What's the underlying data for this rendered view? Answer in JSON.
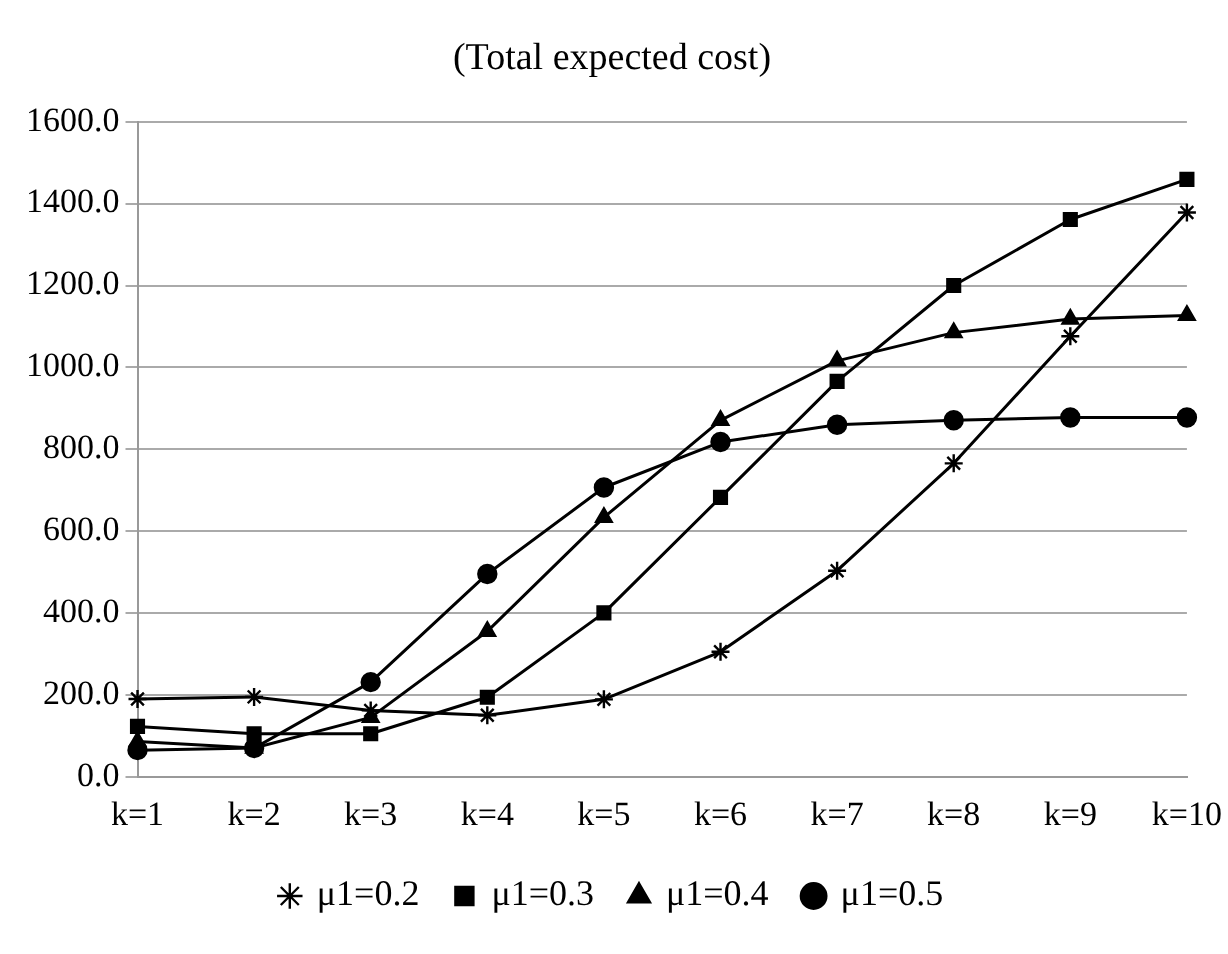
{
  "chart_data": {
    "type": "line",
    "title": "(Total expected cost)",
    "categories": [
      "k=1",
      "k=2",
      "k=3",
      "k=4",
      "k=5",
      "k=6",
      "k=7",
      "k=8",
      "k=9",
      "k=10"
    ],
    "series": [
      {
        "name": "μ1=0.2",
        "color": "#000000",
        "marker": "cross",
        "values": [
          191,
          196,
          163,
          151,
          190,
          306,
          504,
          766,
          1076,
          1378
        ]
      },
      {
        "name": "μ1=0.3",
        "color": "#000000",
        "marker": "square",
        "values": [
          124,
          106,
          106,
          195,
          401,
          683,
          966,
          1200,
          1361,
          1459
        ]
      },
      {
        "name": "μ1=0.4",
        "color": "#000000",
        "marker": "triangle",
        "values": [
          87,
          71,
          146,
          356,
          634,
          871,
          1016,
          1085,
          1118,
          1127
        ]
      },
      {
        "name": "μ1=0.5",
        "color": "#000000",
        "marker": "circle",
        "values": [
          66,
          71,
          232,
          496,
          707,
          818,
          860,
          871,
          878,
          878
        ]
      }
    ],
    "ylim": [
      0,
      1600
    ],
    "yticks": [
      {
        "value": 0,
        "label": "0.0"
      },
      {
        "value": 200,
        "label": "200.0"
      },
      {
        "value": 400,
        "label": "400.0"
      },
      {
        "value": 600,
        "label": "600.0"
      },
      {
        "value": 800,
        "label": "800.0"
      },
      {
        "value": 1000,
        "label": "1000.0"
      },
      {
        "value": 1200,
        "label": "1200.0"
      },
      {
        "value": 1400,
        "label": "1400.0"
      },
      {
        "value": 1600,
        "label": "1600.0"
      }
    ],
    "grid": "y",
    "legend": "bottom"
  }
}
